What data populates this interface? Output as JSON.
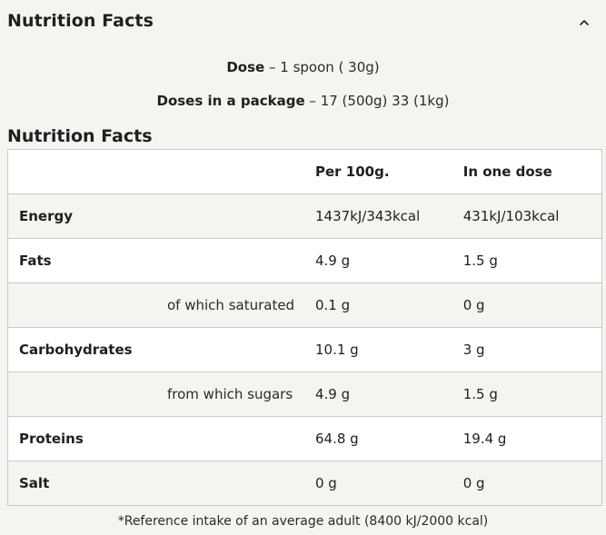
{
  "header": {
    "title": "Nutrition Facts",
    "toggle_icon": "chevron-up-icon"
  },
  "dose": {
    "label": "Dose",
    "value": " – 1 spoon ( 30g)"
  },
  "package": {
    "label": "Doses in a package",
    "value": " – 17 (500g) 33 (1kg)"
  },
  "section_title": "Nutrition Facts",
  "table": {
    "columns": [
      "",
      "Per 100g.",
      "In one dose"
    ],
    "rows": [
      {
        "name": "Energy",
        "per100": "1437kJ/343kcal",
        "dose": "431kJ/103kcal"
      },
      {
        "name": "Fats",
        "per100": "4.9 g",
        "dose": "1.5 g"
      },
      {
        "name": "of which saturated",
        "per100": "0.1 g",
        "dose": "0 g"
      },
      {
        "name": "Carbohydrates",
        "per100": "10.1 g",
        "dose": "3 g"
      },
      {
        "name": "from which sugars",
        "per100": "4.9 g",
        "dose": "1.5 g"
      },
      {
        "name": "Proteins",
        "per100": "64.8 g",
        "dose": "19.4 g"
      },
      {
        "name": "Salt",
        "per100": "0 g",
        "dose": "0 g"
      }
    ]
  },
  "footnote": "*Reference intake of an average adult (8400 kJ/2000 kcal)"
}
